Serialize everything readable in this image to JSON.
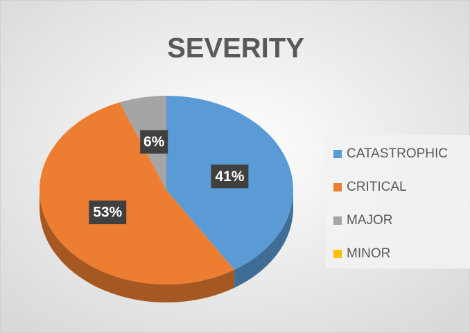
{
  "chart_data": {
    "type": "pie",
    "title": "SEVERITY",
    "categories": [
      "CATASTROPHIC",
      "CRITICAL",
      "MAJOR",
      "MINOR"
    ],
    "values": [
      41,
      53,
      6,
      0
    ],
    "value_labels": [
      "41%",
      "53%",
      "6%",
      null
    ],
    "colors": [
      "#5b9bd5",
      "#ed7d31",
      "#a5a5a5",
      "#ffc000"
    ],
    "legend": "right"
  }
}
